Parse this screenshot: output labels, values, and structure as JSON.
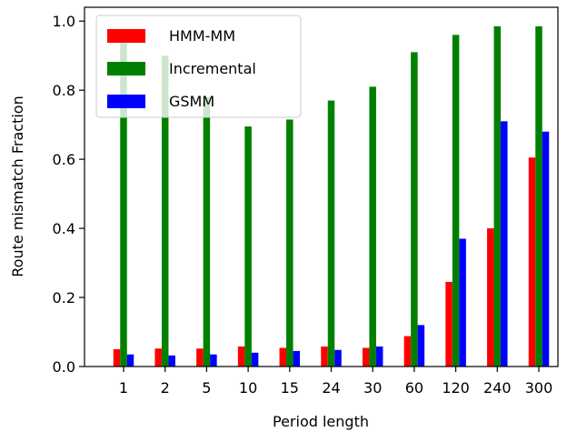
{
  "chart_data": {
    "type": "bar",
    "categories": [
      "1",
      "2",
      "5",
      "10",
      "15",
      "24",
      "30",
      "60",
      "120",
      "240",
      "300"
    ],
    "series": [
      {
        "name": "HMM-MM",
        "color": "#ff0000",
        "values": [
          0.05,
          0.052,
          0.052,
          0.058,
          0.054,
          0.058,
          0.054,
          0.088,
          0.245,
          0.4,
          0.605
        ]
      },
      {
        "name": "Incremental",
        "color": "#008000",
        "values": [
          0.96,
          0.9,
          0.78,
          0.695,
          0.715,
          0.77,
          0.81,
          0.91,
          0.96,
          0.985,
          0.985
        ]
      },
      {
        "name": "GSMM",
        "color": "#0000ff",
        "values": [
          0.035,
          0.032,
          0.035,
          0.04,
          0.045,
          0.048,
          0.058,
          0.12,
          0.37,
          0.71,
          0.68
        ]
      }
    ],
    "xlabel": "Period length",
    "ylabel": "Route mismatch Fraction",
    "ylim": [
      0,
      1.04
    ],
    "yticks": [
      "0.0",
      "0.2",
      "0.4",
      "0.6",
      "0.8",
      "1.0"
    ],
    "grid": false,
    "legend_position": "top-left"
  }
}
